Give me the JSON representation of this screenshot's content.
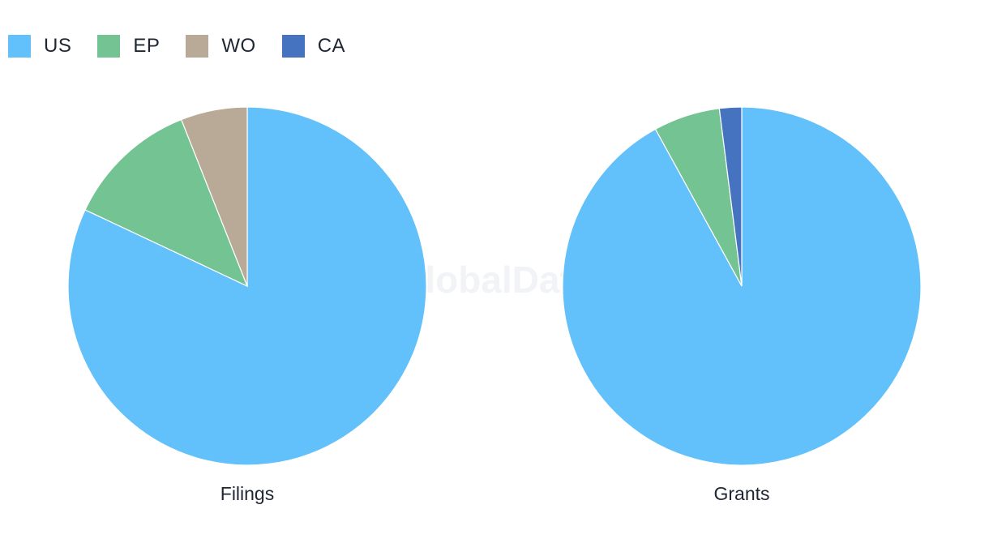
{
  "watermark": "GlobalData",
  "chart_data": [
    {
      "type": "pie",
      "title": "Filings",
      "categories": [
        "US",
        "EP",
        "WO",
        "CA"
      ],
      "values": [
        82,
        12,
        6,
        0
      ],
      "colors": [
        "#62c0fa",
        "#74c392",
        "#b8aa96",
        "#4673c0"
      ]
    },
    {
      "type": "pie",
      "title": "Grants",
      "categories": [
        "US",
        "EP",
        "WO",
        "CA"
      ],
      "values": [
        92,
        6,
        0,
        2
      ],
      "colors": [
        "#62c0fa",
        "#74c392",
        "#b8aa96",
        "#4673c0"
      ]
    }
  ],
  "legend": {
    "position": "top-left",
    "items": [
      {
        "label": "US",
        "color": "#62c0fa"
      },
      {
        "label": "EP",
        "color": "#74c392"
      },
      {
        "label": "WO",
        "color": "#b8aa96"
      },
      {
        "label": "CA",
        "color": "#4673c0"
      }
    ]
  }
}
